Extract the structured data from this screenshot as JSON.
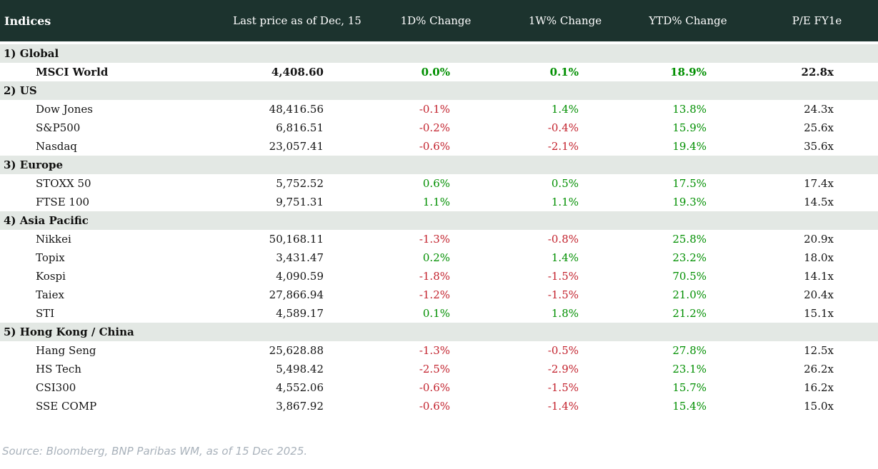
{
  "colors": {
    "header_bg": "#1c332e",
    "section_bg": "#e3e8e4",
    "positive_green": "#008f00",
    "negative_red": "#c3232e",
    "body_text": "#141414",
    "footer_text": "#a9b2bb"
  },
  "table": {
    "title": "Indices",
    "columns": [
      "Last price as of Dec, 15",
      "1D% Change",
      "1W% Change",
      "YTD% Change",
      "P/E FY1e"
    ],
    "sections": [
      {
        "label": "1) Global",
        "rows": [
          {
            "name": "MSCI World",
            "last_price": "4,408.60",
            "d1": "0.0%",
            "w1": "0.1%",
            "ytd": "18.9%",
            "pe": "22.8x",
            "bold": true
          }
        ]
      },
      {
        "label": "2) US",
        "rows": [
          {
            "name": "Dow Jones",
            "last_price": "48,416.56",
            "d1": "-0.1%",
            "w1": "1.4%",
            "ytd": "13.8%",
            "pe": "24.3x",
            "bold": false
          },
          {
            "name": "S&P500",
            "last_price": "6,816.51",
            "d1": "-0.2%",
            "w1": "-0.4%",
            "ytd": "15.9%",
            "pe": "25.6x",
            "bold": false
          },
          {
            "name": "Nasdaq",
            "last_price": "23,057.41",
            "d1": "-0.6%",
            "w1": "-2.1%",
            "ytd": "19.4%",
            "pe": "35.6x",
            "bold": false
          }
        ]
      },
      {
        "label": "3) Europe",
        "rows": [
          {
            "name": "STOXX 50",
            "last_price": "5,752.52",
            "d1": "0.6%",
            "w1": "0.5%",
            "ytd": "17.5%",
            "pe": "17.4x",
            "bold": false
          },
          {
            "name": "FTSE 100",
            "last_price": "9,751.31",
            "d1": "1.1%",
            "w1": "1.1%",
            "ytd": "19.3%",
            "pe": "14.5x",
            "bold": false
          }
        ]
      },
      {
        "label": "4) Asia Pacific",
        "rows": [
          {
            "name": "Nikkei",
            "last_price": "50,168.11",
            "d1": "-1.3%",
            "w1": "-0.8%",
            "ytd": "25.8%",
            "pe": "20.9x",
            "bold": false
          },
          {
            "name": "Topix",
            "last_price": "3,431.47",
            "d1": "0.2%",
            "w1": "1.4%",
            "ytd": "23.2%",
            "pe": "18.0x",
            "bold": false
          },
          {
            "name": "Kospi",
            "last_price": "4,090.59",
            "d1": "-1.8%",
            "w1": "-1.5%",
            "ytd": "70.5%",
            "pe": "14.1x",
            "bold": false
          },
          {
            "name": "Taiex",
            "last_price": "27,866.94",
            "d1": "-1.2%",
            "w1": "-1.5%",
            "ytd": "21.0%",
            "pe": "20.4x",
            "bold": false
          },
          {
            "name": "STI",
            "last_price": "4,589.17",
            "d1": "0.1%",
            "w1": "1.8%",
            "ytd": "21.2%",
            "pe": "15.1x",
            "bold": false
          }
        ]
      },
      {
        "label": "5) Hong Kong / China",
        "rows": [
          {
            "name": "Hang Seng",
            "last_price": "25,628.88",
            "d1": "-1.3%",
            "w1": "-0.5%",
            "ytd": "27.8%",
            "pe": "12.5x",
            "bold": false
          },
          {
            "name": "HS Tech",
            "last_price": "5,498.42",
            "d1": "-2.5%",
            "w1": "-2.9%",
            "ytd": "23.1%",
            "pe": "26.2x",
            "bold": false
          },
          {
            "name": "CSI300",
            "last_price": "4,552.06",
            "d1": "-0.6%",
            "w1": "-1.5%",
            "ytd": "15.7%",
            "pe": "16.2x",
            "bold": false
          },
          {
            "name": "SSE COMP",
            "last_price": "3,867.92",
            "d1": "-0.6%",
            "w1": "-1.4%",
            "ytd": "15.4%",
            "pe": "15.0x",
            "bold": false
          }
        ]
      }
    ]
  },
  "footer": {
    "source": "Source: Bloomberg, BNP Paribas WM, as of 15 Dec 2025."
  }
}
